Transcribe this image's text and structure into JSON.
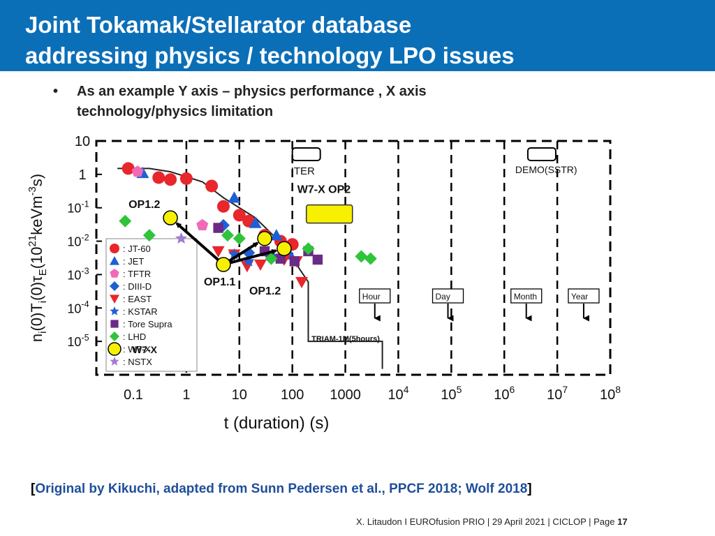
{
  "slide": {
    "title_line1": "Joint Tokamak/Stellarator database",
    "title_line2": "addressing physics / technology LPO issues",
    "bullet_marker": "•",
    "bullet_line1": "As an example Y axis – physics performance , X axis",
    "bullet_line2": "technology/physics limitation",
    "citation_open": "[",
    "citation_text": "Original by Kikuchi, adapted from Sunn Pedersen et al., PPCF 2018; Wolf 2018",
    "citation_close": "]",
    "footer_text": "X. Litaudon I EUROfusion PRIO | 29 April  2021 | CICLOP | Page ",
    "page_number": "17",
    "colors": {
      "header_bg": "#0b6fb8",
      "citation": "#1f4e9a",
      "w7x_fill": "#f7f000"
    }
  },
  "chart_data": {
    "type": "scatter",
    "xlabel": "t (duration) (s)",
    "ylabel": "n_i(0)T_i(0)τ_E (10^21 keVm^-3 s)",
    "ylabel_parts": {
      "a": "n",
      "b": "i",
      "c": "(0)T",
      "d": "i",
      "e": "(0)τ",
      "f": "E",
      "g": "(10",
      "h": "21",
      "i": "keVm",
      "j": "-3",
      "k": "s)"
    },
    "x_scale": "log",
    "y_scale": "log",
    "xlim": [
      0.02,
      100000000
    ],
    "ylim": [
      1e-06,
      10
    ],
    "x_ticks": [
      {
        "v": 0.1,
        "label": "0.1"
      },
      {
        "v": 1,
        "label": "1"
      },
      {
        "v": 10,
        "label": "10"
      },
      {
        "v": 100,
        "label": "100"
      },
      {
        "v": 1000,
        "label": "1000"
      },
      {
        "v": 10000,
        "m": "10",
        "e": "4"
      },
      {
        "v": 100000,
        "m": "10",
        "e": "5"
      },
      {
        "v": 1000000,
        "m": "10",
        "e": "6"
      },
      {
        "v": 10000000,
        "m": "10",
        "e": "7"
      },
      {
        "v": 100000000,
        "m": "10",
        "e": "8"
      }
    ],
    "y_ticks": [
      {
        "v": 10,
        "label": "10"
      },
      {
        "v": 1,
        "label": "1"
      },
      {
        "v": 0.1,
        "m": "10",
        "e": "-1"
      },
      {
        "v": 0.01,
        "m": "10",
        "e": "-2"
      },
      {
        "v": 0.001,
        "m": "10",
        "e": "-3"
      },
      {
        "v": 0.0001,
        "m": "10",
        "e": "-4"
      },
      {
        "v": 1e-05,
        "m": "10",
        "e": "-5"
      }
    ],
    "grid": "dashed vertical lines at decades",
    "legend_position": "lower-left",
    "series": [
      {
        "name": ": JT-60",
        "marker": "circle",
        "color": "#e8262b",
        "points": [
          [
            0.08,
            1.5
          ],
          [
            0.3,
            0.8
          ],
          [
            0.5,
            0.7
          ],
          [
            1.0,
            0.75
          ],
          [
            3,
            0.45
          ],
          [
            5,
            0.11
          ],
          [
            10,
            0.06
          ],
          [
            15,
            0.04
          ],
          [
            30,
            0.015
          ],
          [
            60,
            0.01
          ],
          [
            100,
            0.008
          ]
        ]
      },
      {
        "name": ": JET",
        "marker": "triangle-up",
        "color": "#1f5fd6",
        "points": [
          [
            0.15,
            1.1
          ],
          [
            8,
            0.2
          ],
          [
            20,
            0.035
          ],
          [
            50,
            0.015
          ],
          [
            90,
            0.004
          ]
        ]
      },
      {
        "name": ": TFTR",
        "marker": "pentagon",
        "color": "#f06ab8",
        "points": [
          [
            0.12,
            1.2
          ],
          [
            2,
            0.03
          ]
        ]
      },
      {
        "name": ": DIII-D",
        "marker": "diamond",
        "color": "#1f5fd6",
        "points": [
          [
            5,
            0.03
          ],
          [
            15,
            0.0045
          ],
          [
            40,
            0.0035
          ],
          [
            75,
            0.004
          ]
        ]
      },
      {
        "name": ": EAST",
        "marker": "triangle-down",
        "color": "#e8262b",
        "points": [
          [
            4,
            0.005
          ],
          [
            8,
            0.004
          ],
          [
            14,
            0.0018
          ],
          [
            25,
            0.002
          ],
          [
            70,
            0.0028
          ],
          [
            120,
            0.0025
          ],
          [
            150,
            0.0006
          ]
        ]
      },
      {
        "name": ": KSTAR",
        "marker": "star",
        "color": "#1f5fd6",
        "points": [
          [
            8,
            0.004
          ],
          [
            15,
            0.0025
          ]
        ]
      },
      {
        "name": ": Tore Supra",
        "marker": "square",
        "color": "#6a2a86",
        "points": [
          [
            4,
            0.025
          ],
          [
            30,
            0.005
          ],
          [
            60,
            0.003
          ],
          [
            110,
            0.0025
          ],
          [
            200,
            0.005
          ],
          [
            300,
            0.0028
          ]
        ]
      },
      {
        "name": ": LHD",
        "marker": "diamond",
        "color": "#2fc43a",
        "points": [
          [
            0.07,
            0.04
          ],
          [
            0.2,
            0.015
          ],
          [
            6,
            0.015
          ],
          [
            10,
            0.012
          ],
          [
            40,
            0.003
          ],
          [
            200,
            0.006
          ],
          [
            2000,
            0.0035
          ],
          [
            3000,
            0.003
          ]
        ]
      },
      {
        "name": ": W7-X",
        "marker": "circle",
        "color": "#f7f000",
        "points": [
          [
            0.5,
            0.05
          ],
          [
            5,
            0.002
          ],
          [
            30,
            0.012
          ],
          [
            70,
            0.006
          ]
        ]
      },
      {
        "name": ": NSTX",
        "marker": "star",
        "color": "#a07dd4",
        "points": [
          [
            0.8,
            0.012
          ]
        ]
      }
    ],
    "annotations": {
      "iter_label": "ITER",
      "demo_label": "DEMO",
      "sstr_label": "SSTR",
      "w7x_op2_label": "W7-X OP2",
      "op12_left": "OP1.2",
      "op11": "OP1.1",
      "op12_right": "OP1.2",
      "w7x_legend_extra": "W7-X",
      "triam_label": "TRIAM-1M(5hours)",
      "hour_label": "Hour",
      "day_label": "Day",
      "month_label": "Month",
      "year_label": "Year"
    },
    "w7x_op2_target": {
      "x": 500,
      "y": 0.065
    },
    "arrows": [
      {
        "from": [
          5,
          0.002
        ],
        "to": [
          0.5,
          0.05
        ]
      },
      {
        "from": [
          5,
          0.002
        ],
        "to": [
          30,
          0.012
        ]
      },
      {
        "from": [
          5,
          0.002
        ],
        "to": [
          70,
          0.006
        ]
      }
    ],
    "limit_line": [
      [
        0.05,
        1.5
      ],
      [
        0.2,
        1.5
      ],
      [
        0.5,
        1.2
      ],
      [
        2,
        0.6
      ],
      [
        5,
        0.2
      ],
      [
        20,
        0.05
      ],
      [
        50,
        0.012
      ],
      [
        120,
        0.002
      ],
      [
        200,
        0.0006
      ],
      [
        200,
        1e-05
      ],
      [
        5000,
        1e-05
      ],
      [
        5000,
        1.5e-06
      ]
    ],
    "limit_line_label": ""
  }
}
